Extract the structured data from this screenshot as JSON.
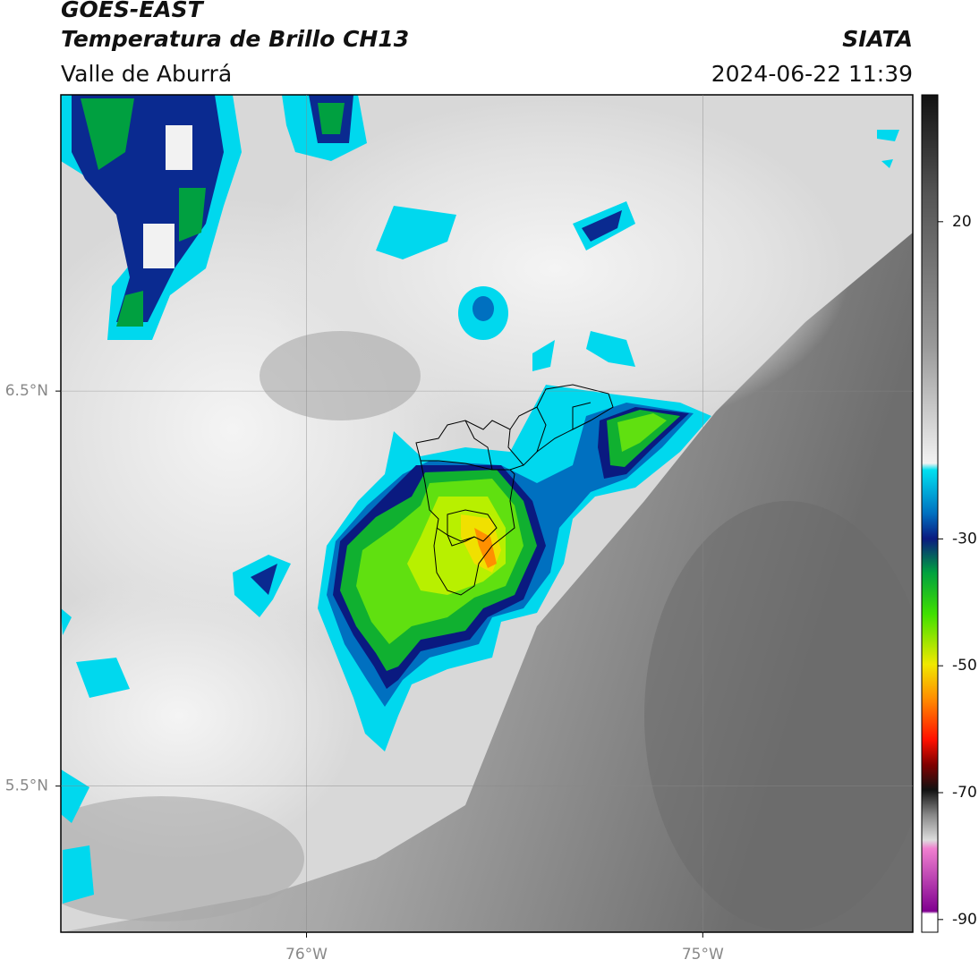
{
  "header": {
    "satellite": "GOES-EAST",
    "product": "Temperatura de Brillo CH13",
    "agency": "SIATA",
    "region": "Valle de Aburrá",
    "timestamp": "2024-06-22 11:39"
  },
  "map": {
    "xlim": [
      -76.62,
      -74.47
    ],
    "ylim": [
      5.13,
      7.25
    ],
    "xticks": [
      {
        "value": -76,
        "label": "76°W"
      },
      {
        "value": -75,
        "label": "75°W"
      }
    ],
    "yticks": [
      {
        "value": 6.5,
        "label": "6.5°N"
      },
      {
        "value": 5.5,
        "label": "5.5°N"
      }
    ],
    "grid": true
  },
  "colorbar": {
    "lim": [
      -92,
      40
    ],
    "ticks": [
      20,
      -30,
      -50,
      -70,
      -90
    ]
  }
}
